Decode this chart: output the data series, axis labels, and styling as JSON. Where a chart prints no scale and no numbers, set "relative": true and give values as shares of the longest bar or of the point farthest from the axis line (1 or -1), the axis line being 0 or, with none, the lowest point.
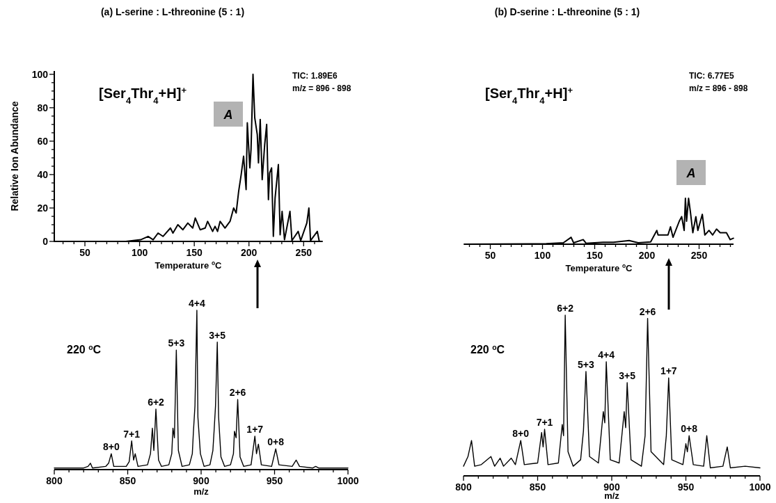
{
  "chart_data": [
    {
      "type": "line",
      "title": "(a) L-serine : L-threonine (5 : 1)",
      "xlabel": "Temperature $^{o}$C",
      "ylabel": "Relative Ion Abundance",
      "annotations": [
        "[Ser$_{4}$Thr$_{4}$+H]$^{+}$",
        "A",
        "TIC: 1.89E6",
        "m/z = 896 - 898"
      ],
      "x": [
        22,
        87.4,
        94.2,
        101,
        107.8,
        112.4,
        116.9,
        121.4,
        128.2,
        130.5,
        135,
        139.6,
        144.1,
        148.6,
        150.9,
        155.4,
        160,
        162.2,
        166.8,
        169,
        171.3,
        173.6,
        178.1,
        182.7,
        186,
        188.3,
        190.6,
        192.9,
        195.1,
        197.4,
        198.5,
        200.8,
        201.9,
        203.7,
        205.3,
        207.6,
        208.7,
        210.3,
        212.1,
        214.4,
        216.2,
        217.8,
        218.9,
        220.7,
        222.3,
        223.9,
        226.9,
        228.5,
        230.3,
        232.5,
        237.5,
        239.3,
        245,
        247.3,
        252.9,
        254.8,
        256.3,
        262.5,
        264.3,
        267
      ],
      "series": [
        {
          "color": "#000000",
          "values": [
            0,
            0,
            0.5,
            1,
            3,
            1,
            5,
            3,
            8,
            5,
            10,
            7,
            11,
            8,
            14,
            7,
            8,
            12,
            6,
            9,
            6,
            12,
            8,
            12,
            20,
            17,
            30,
            40,
            51,
            31,
            71,
            44,
            55,
            100,
            74,
            64,
            47,
            73,
            37,
            58,
            70,
            25,
            41,
            44,
            3,
            26,
            46,
            4,
            18,
            1,
            18,
            0.5,
            6,
            0.5,
            11,
            20,
            0.5,
            6,
            0,
            0
          ]
        }
      ],
      "xlim": [
        22,
        267
      ],
      "xticks": [
        {
          "value": 30,
          "label": null
        },
        {
          "value": 40,
          "label": null
        },
        50,
        {
          "value": 60,
          "label": null
        },
        {
          "value": 70,
          "label": null
        },
        {
          "value": 80,
          "label": null
        },
        {
          "value": 90,
          "label": null
        },
        100,
        {
          "value": 110,
          "label": null
        },
        {
          "value": 120,
          "label": null
        },
        {
          "value": 130,
          "label": null
        },
        {
          "value": 140,
          "label": null
        },
        150,
        {
          "value": 160,
          "label": null
        },
        {
          "value": 170,
          "label": null
        },
        {
          "value": 180,
          "label": null
        },
        {
          "value": 190,
          "label": null
        },
        200,
        {
          "value": 210,
          "label": null
        },
        {
          "value": 220,
          "label": null
        },
        {
          "value": 230,
          "label": null
        },
        {
          "value": 240,
          "label": null
        },
        250,
        {
          "value": 260,
          "label": null
        }
      ],
      "ylim": [
        0,
        102
      ],
      "yticks": [
        0,
        {
          "value": 5,
          "label": null
        },
        {
          "value": 10,
          "label": null
        },
        {
          "value": 15,
          "label": null
        },
        20,
        {
          "value": 25,
          "label": null
        },
        {
          "value": 30,
          "label": null
        },
        {
          "value": 35,
          "label": null
        },
        40,
        {
          "value": 45,
          "label": null
        },
        {
          "value": 50,
          "label": null
        },
        {
          "value": 55,
          "label": null
        },
        60,
        {
          "value": 65,
          "label": null
        },
        {
          "value": 70,
          "label": null
        },
        {
          "value": 75,
          "label": null
        },
        80,
        {
          "value": 85,
          "label": null
        },
        {
          "value": 90,
          "label": null
        },
        {
          "value": 95,
          "label": null
        },
        100
      ]
    },
    {
      "type": "line",
      "relative": true,
      "title": "(b) D-serine : L-threonine (5 : 1)",
      "xlabel": "Temperature $^{o}$C",
      "annotations": [
        "[Ser$_{4}$Thr$_{4}$+H]$^{+}$",
        "A",
        "TIC: 6.77E5",
        "m/z = 896 - 898"
      ],
      "x": [
        25,
        103.6,
        120,
        127.4,
        129.8,
        139,
        141.7,
        158,
        167.9,
        183,
        191.7,
        203.6,
        206,
        209.5,
        210.7,
        220.2,
        222.6,
        225,
        231,
        233.3,
        235.7,
        236.9,
        238,
        239.9,
        241.7,
        244,
        246.9,
        248.8,
        253.1,
        255.5,
        259.5,
        263,
        266.7,
        270.2,
        276.2,
        279.8,
        282.9
      ],
      "series": [
        {
          "color": "#000000",
          "values": [
            0,
            0.01,
            0.03,
            0.15,
            0.03,
            0.1,
            0.02,
            0.04,
            0.04,
            0.08,
            0.03,
            0.05,
            0.15,
            0.3,
            0.2,
            0.2,
            0.38,
            0.15,
            0.5,
            0.6,
            0.3,
            1,
            0.5,
            1,
            0.7,
            0.25,
            0.6,
            0.3,
            0.65,
            0.2,
            0.3,
            0.2,
            0.33,
            0.25,
            0.25,
            0.1,
            0.13
          ]
        }
      ],
      "xlim": [
        25,
        283
      ],
      "xticks": [
        {
          "value": 30,
          "label": null
        },
        {
          "value": 40,
          "label": null
        },
        50,
        {
          "value": 60,
          "label": null
        },
        {
          "value": 70,
          "label": null
        },
        {
          "value": 80,
          "label": null
        },
        {
          "value": 90,
          "label": null
        },
        100,
        {
          "value": 110,
          "label": null
        },
        {
          "value": 120,
          "label": null
        },
        {
          "value": 130,
          "label": null
        },
        {
          "value": 140,
          "label": null
        },
        150,
        {
          "value": 160,
          "label": null
        },
        {
          "value": 170,
          "label": null
        },
        {
          "value": 180,
          "label": null
        },
        {
          "value": 190,
          "label": null
        },
        200,
        {
          "value": 210,
          "label": null
        },
        {
          "value": 220,
          "label": null
        },
        {
          "value": 230,
          "label": null
        },
        {
          "value": 240,
          "label": null
        },
        250,
        {
          "value": 260,
          "label": null
        },
        {
          "value": 270,
          "label": null
        },
        {
          "value": 280,
          "label": null
        }
      ]
    },
    {
      "type": "line",
      "relative": true,
      "xlabel": "m/z",
      "annotations": [
        "220 $^{o}$C",
        {
          "text": "8+0",
          "x": 838.8,
          "y": 0.1
        },
        {
          "text": "7+1",
          "x": 852.7,
          "y": 0.18
        },
        {
          "text": "6+2",
          "x": 869.2,
          "y": 0.38
        },
        {
          "text": "5+3",
          "x": 883.1,
          "y": 0.75
        },
        {
          "text": "4+4",
          "x": 897.1,
          "y": 1
        },
        {
          "text": "3+5",
          "x": 911,
          "y": 0.8
        },
        {
          "text": "2+6",
          "x": 924.9,
          "y": 0.44
        },
        {
          "text": "1+7",
          "x": 936.6,
          "y": 0.21
        },
        {
          "text": "0+8",
          "x": 950.8,
          "y": 0.13
        }
      ],
      "x": [
        800,
        820,
        823,
        824.6,
        826,
        835,
        837,
        838.8,
        840.5,
        849,
        851,
        852.7,
        854,
        855.1,
        857,
        863.5,
        865.5,
        866.8,
        867.8,
        869.2,
        871,
        873,
        878,
        880,
        880.8,
        881.8,
        883.1,
        884.5,
        887,
        892,
        894,
        894.7,
        895.8,
        897.1,
        897.8,
        899.5,
        902,
        906,
        908,
        908.8,
        909.8,
        911,
        911.9,
        913.5,
        916,
        920,
        922,
        922.7,
        923.8,
        924.9,
        926.5,
        929,
        934,
        936.6,
        937.7,
        939,
        941,
        948,
        950.8,
        953,
        962,
        964.7,
        967,
        976,
        978,
        980,
        1000
      ],
      "series": [
        {
          "color": "#000000",
          "values": [
            0.01,
            0.01,
            0.02,
            0.04,
            0.01,
            0.02,
            0.04,
            0.1,
            0.02,
            0.02,
            0.05,
            0.18,
            0.06,
            0.1,
            0.02,
            0.03,
            0.1,
            0.26,
            0.12,
            0.38,
            0.06,
            0.02,
            0.03,
            0.1,
            0.26,
            0.2,
            0.75,
            0.12,
            0.02,
            0.03,
            0.1,
            0.23,
            0.4,
            1,
            0.33,
            0.1,
            0.02,
            0.03,
            0.12,
            0.24,
            0.4,
            0.8,
            0.33,
            0.08,
            0.02,
            0.03,
            0.1,
            0.24,
            0.2,
            0.44,
            0.08,
            0.02,
            0.03,
            0.21,
            0.1,
            0.16,
            0.03,
            0.02,
            0.13,
            0.03,
            0.02,
            0.06,
            0.02,
            0.01,
            0.02,
            0.01,
            0.01
          ]
        }
      ],
      "xlim": [
        800,
        1000
      ],
      "xticks": [
        800,
        {
          "value": 810,
          "label": null
        },
        {
          "value": 820,
          "label": null
        },
        {
          "value": 830,
          "label": null
        },
        {
          "value": 840,
          "label": null
        },
        850,
        {
          "value": 860,
          "label": null
        },
        {
          "value": 870,
          "label": null
        },
        {
          "value": 880,
          "label": null
        },
        {
          "value": 890,
          "label": null
        },
        900,
        {
          "value": 910,
          "label": null
        },
        {
          "value": 920,
          "label": null
        },
        {
          "value": 930,
          "label": null
        },
        {
          "value": 940,
          "label": null
        },
        950,
        {
          "value": 960,
          "label": null
        },
        {
          "value": 970,
          "label": null
        },
        {
          "value": 980,
          "label": null
        },
        {
          "value": 990,
          "label": null
        },
        1000
      ]
    },
    {
      "type": "line",
      "relative": true,
      "xlabel": "m/z",
      "annotations": [
        "220 $^{o}$C",
        {
          "text": "8+0",
          "x": 838.6,
          "y": 0.22
        },
        {
          "text": "7+1",
          "x": 854.7,
          "y": 0.29
        },
        {
          "text": "6+2",
          "x": 868.6,
          "y": 1
        },
        {
          "text": "5+3",
          "x": 882.6,
          "y": 0.65
        },
        {
          "text": "4+4",
          "x": 896.3,
          "y": 0.71
        },
        {
          "text": "3+5",
          "x": 910.4,
          "y": 0.58
        },
        {
          "text": "2+6",
          "x": 924.2,
          "y": 0.98
        },
        {
          "text": "1+7",
          "x": 938.4,
          "y": 0.61
        },
        {
          "text": "0+8",
          "x": 952.2,
          "y": 0.25
        }
      ],
      "x": [
        800,
        803,
        805.4,
        807.5,
        812,
        818.5,
        821,
        824.7,
        827,
        832.2,
        835,
        838.6,
        841,
        850,
        852.7,
        853.7,
        854.7,
        857,
        864,
        866.6,
        867.5,
        868.6,
        870.5,
        874,
        879,
        880.9,
        882.6,
        885,
        891,
        894.3,
        895.3,
        896.3,
        899,
        905,
        908.4,
        909.4,
        910.4,
        913,
        920,
        922.5,
        924.2,
        926.5,
        935,
        936.8,
        938.4,
        940.5,
        948,
        950,
        951,
        952.2,
        955,
        962,
        964.1,
        966.5,
        975,
        977.9,
        980,
        990,
        1000
      ],
      "series": [
        {
          "color": "#000000",
          "values": [
            0.06,
            0.12,
            0.22,
            0.06,
            0.07,
            0.12,
            0.06,
            0.11,
            0.06,
            0.11,
            0.07,
            0.22,
            0.07,
            0.08,
            0.27,
            0.18,
            0.29,
            0.07,
            0.08,
            0.32,
            0.25,
            1,
            0.15,
            0.06,
            0.1,
            0.28,
            0.65,
            0.12,
            0.08,
            0.4,
            0.33,
            0.71,
            0.1,
            0.08,
            0.4,
            0.3,
            0.58,
            0.1,
            0.06,
            0.25,
            0.98,
            0.15,
            0.07,
            0.25,
            0.61,
            0.1,
            0.07,
            0.2,
            0.15,
            0.25,
            0.07,
            0.06,
            0.25,
            0.05,
            0.06,
            0.18,
            0.05,
            0.06,
            0.05
          ]
        }
      ],
      "xlim": [
        800,
        1000
      ],
      "xticks": [
        800,
        {
          "value": 810,
          "label": null
        },
        {
          "value": 820,
          "label": null
        },
        {
          "value": 830,
          "label": null
        },
        {
          "value": 840,
          "label": null
        },
        850,
        {
          "value": 860,
          "label": null
        },
        {
          "value": 870,
          "label": null
        },
        {
          "value": 880,
          "label": null
        },
        {
          "value": 890,
          "label": null
        },
        900,
        {
          "value": 910,
          "label": null
        },
        {
          "value": 920,
          "label": null
        },
        {
          "value": 930,
          "label": null
        },
        {
          "value": 940,
          "label": null
        },
        950,
        {
          "value": 960,
          "label": null
        },
        {
          "value": 970,
          "label": null
        },
        {
          "value": 980,
          "label": null
        },
        {
          "value": 990,
          "label": null
        },
        1000
      ]
    }
  ]
}
